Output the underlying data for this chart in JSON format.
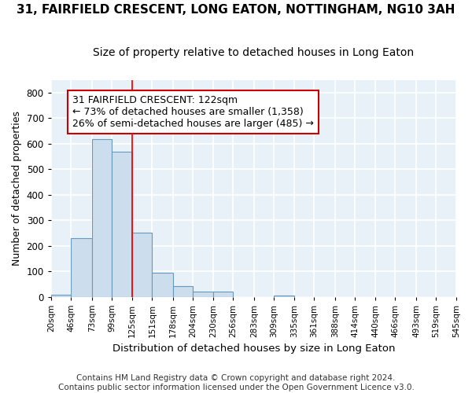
{
  "title": "31, FAIRFIELD CRESCENT, LONG EATON, NOTTINGHAM, NG10 3AH",
  "subtitle": "Size of property relative to detached houses in Long Eaton",
  "xlabel": "Distribution of detached houses by size in Long Eaton",
  "ylabel": "Number of detached properties",
  "bar_color": "#ccdded",
  "bar_edge_color": "#6699bb",
  "background_color": "#e8f0f8",
  "grid_color": "#ffffff",
  "annotation_box_color": "#cc0000",
  "annotation_line1": "31 FAIRFIELD CRESCENT: 122sqm",
  "annotation_line2": "← 73% of detached houses are smaller (1,358)",
  "annotation_line3": "26% of semi-detached houses are larger (485) →",
  "property_line_x": 125,
  "ylim": [
    0,
    850
  ],
  "yticks": [
    0,
    100,
    200,
    300,
    400,
    500,
    600,
    700,
    800
  ],
  "bin_edges": [
    20,
    46,
    73,
    99,
    125,
    151,
    178,
    204,
    230,
    256,
    283,
    309,
    335,
    361,
    388,
    414,
    440,
    466,
    493,
    519,
    545
  ],
  "bin_labels": [
    "20sqm",
    "46sqm",
    "73sqm",
    "99sqm",
    "125sqm",
    "151sqm",
    "178sqm",
    "204sqm",
    "230sqm",
    "256sqm",
    "283sqm",
    "309sqm",
    "335sqm",
    "361sqm",
    "388sqm",
    "414sqm",
    "440sqm",
    "466sqm",
    "493sqm",
    "519sqm",
    "545sqm"
  ],
  "bar_heights": [
    8,
    228,
    618,
    567,
    252,
    95,
    42,
    20,
    20,
    0,
    0,
    5,
    0,
    0,
    0,
    0,
    0,
    0,
    0,
    0
  ],
  "footer_line1": "Contains HM Land Registry data © Crown copyright and database right 2024.",
  "footer_line2": "Contains public sector information licensed under the Open Government Licence v3.0.",
  "title_fontsize": 11,
  "subtitle_fontsize": 10,
  "annotation_fontsize": 9,
  "footer_fontsize": 7.5
}
